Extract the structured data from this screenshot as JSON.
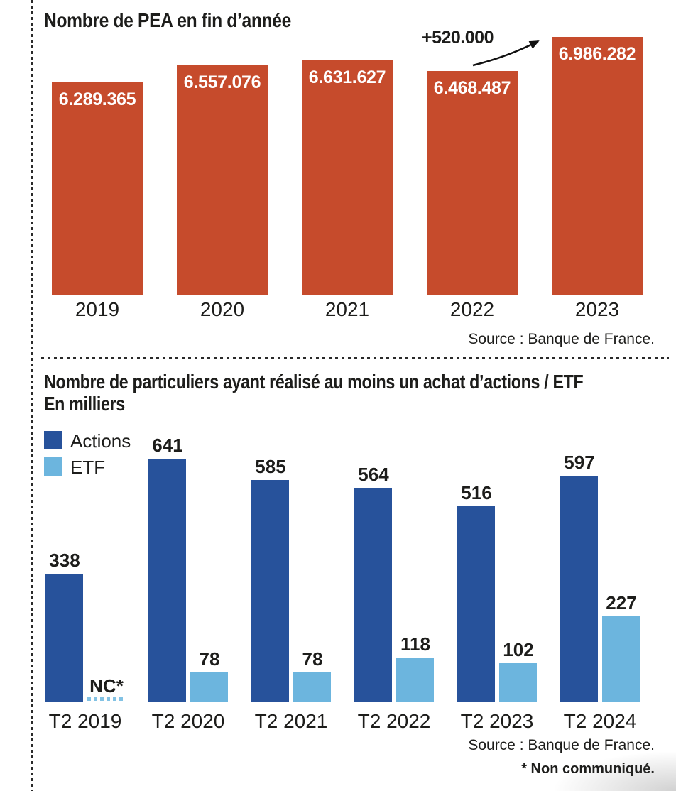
{
  "chart1": {
    "title": "Nombre de PEA en fin d’année",
    "annotation": "+520.000",
    "source": "Source : Banque de France."
  },
  "chart2": {
    "title": "Nombre de particuliers ayant réalisé au moins un achat d’actions / ETF",
    "subtitle": "En milliers",
    "source": "Source : Banque de France.",
    "footnote": "* Non communiqué.",
    "nc_label": "NC*"
  },
  "colors": {
    "red": "#c64b2c",
    "dark_blue": "#27529b",
    "light_blue": "#6cb5de",
    "text": "#1d1d1b",
    "bar_label_white": "#ffffff",
    "nc_dotted": "#82c2e4"
  },
  "chart_data": [
    {
      "type": "bar",
      "title": "Nombre de PEA en fin d’année",
      "categories": [
        "2019",
        "2020",
        "2021",
        "2022",
        "2023"
      ],
      "values": [
        6289365,
        6557076,
        6631627,
        6468487,
        6986282
      ],
      "bar_labels": [
        "6.289.365",
        "6.557.076",
        "6.631.627",
        "6.468.487",
        "6.986.282"
      ],
      "bar_color": "#c64b2c",
      "value_label_position": "inside-top",
      "annotation": {
        "text": "+520.000",
        "from": "2022",
        "to": "2023"
      },
      "baseline_truncated": true,
      "grid": false,
      "source": "Source : Banque de France."
    },
    {
      "type": "bar",
      "title": "Nombre de particuliers ayant réalisé au moins un achat d’actions / ETF",
      "unit": "En milliers",
      "categories": [
        "T2 2019",
        "T2 2020",
        "T2 2021",
        "T2 2022",
        "T2 2023",
        "T2 2024"
      ],
      "series": [
        {
          "name": "Actions",
          "color": "#27529b",
          "values": [
            338,
            641,
            585,
            564,
            516,
            597
          ]
        },
        {
          "name": "ETF",
          "color": "#6cb5de",
          "values": [
            null,
            78,
            78,
            118,
            102,
            227
          ]
        }
      ],
      "null_label": "NC*",
      "value_label_position": "above",
      "legend_position": "top-left",
      "ylim": [
        0,
        660
      ],
      "grid": false,
      "source": "Source : Banque de France.",
      "footnote": "* Non communiqué."
    }
  ]
}
